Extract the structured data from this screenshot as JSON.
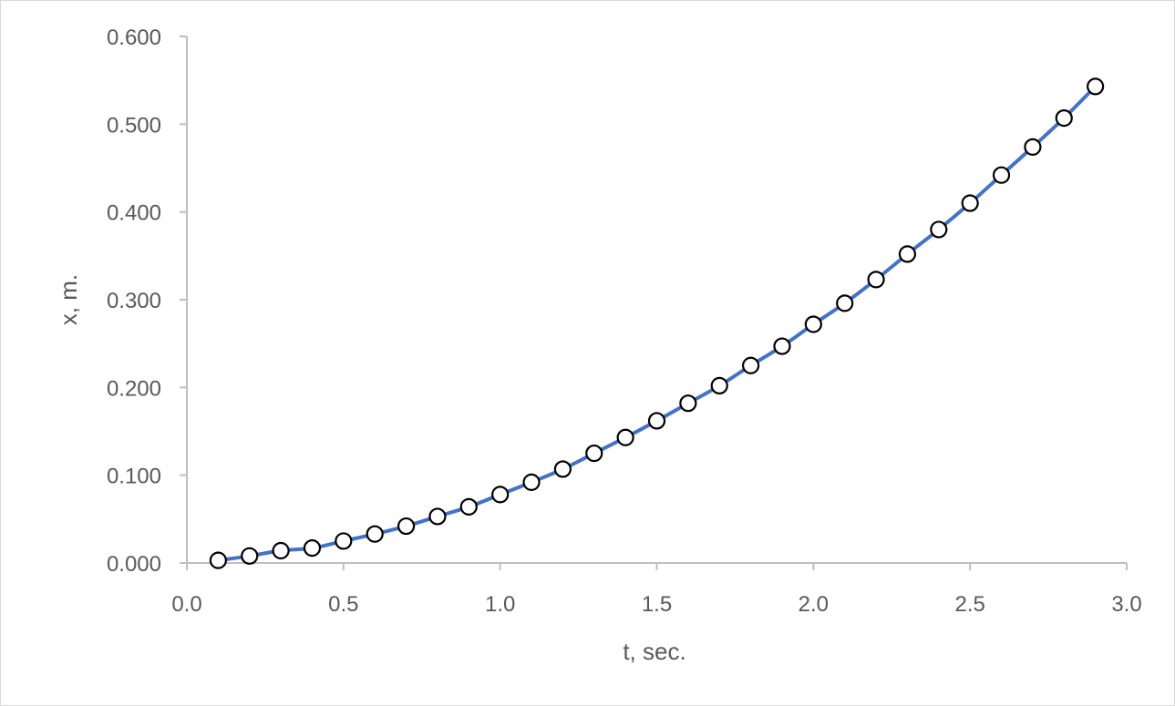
{
  "chart_data": {
    "type": "scatter",
    "title": "",
    "xlabel": "t, sec.",
    "ylabel": "x, m.",
    "xlim": [
      0.0,
      3.0
    ],
    "ylim": [
      0.0,
      0.6
    ],
    "x_ticks": [
      "0.0",
      "0.5",
      "1.0",
      "1.5",
      "2.0",
      "2.5",
      "3.0"
    ],
    "y_ticks": [
      "0.000",
      "0.100",
      "0.200",
      "0.300",
      "0.400",
      "0.500",
      "0.600"
    ],
    "grid": false,
    "legend": "none",
    "series": [
      {
        "line_color": "#4472c4",
        "marker": "open-circle",
        "x": [
          0.1,
          0.2,
          0.3,
          0.4,
          0.5,
          0.6,
          0.7,
          0.8,
          0.9,
          1.0,
          1.1,
          1.2,
          1.3,
          1.4,
          1.5,
          1.6,
          1.7,
          1.8,
          1.9,
          2.0,
          2.1,
          2.2,
          2.3,
          2.4,
          2.5,
          2.6,
          2.7,
          2.8,
          2.9
        ],
        "y": [
          0.003,
          0.008,
          0.014,
          0.017,
          0.025,
          0.033,
          0.042,
          0.053,
          0.064,
          0.078,
          0.092,
          0.107,
          0.125,
          0.143,
          0.162,
          0.182,
          0.202,
          0.225,
          0.247,
          0.272,
          0.296,
          0.323,
          0.352,
          0.38,
          0.41,
          0.442,
          0.474,
          0.507,
          0.543
        ]
      }
    ]
  }
}
